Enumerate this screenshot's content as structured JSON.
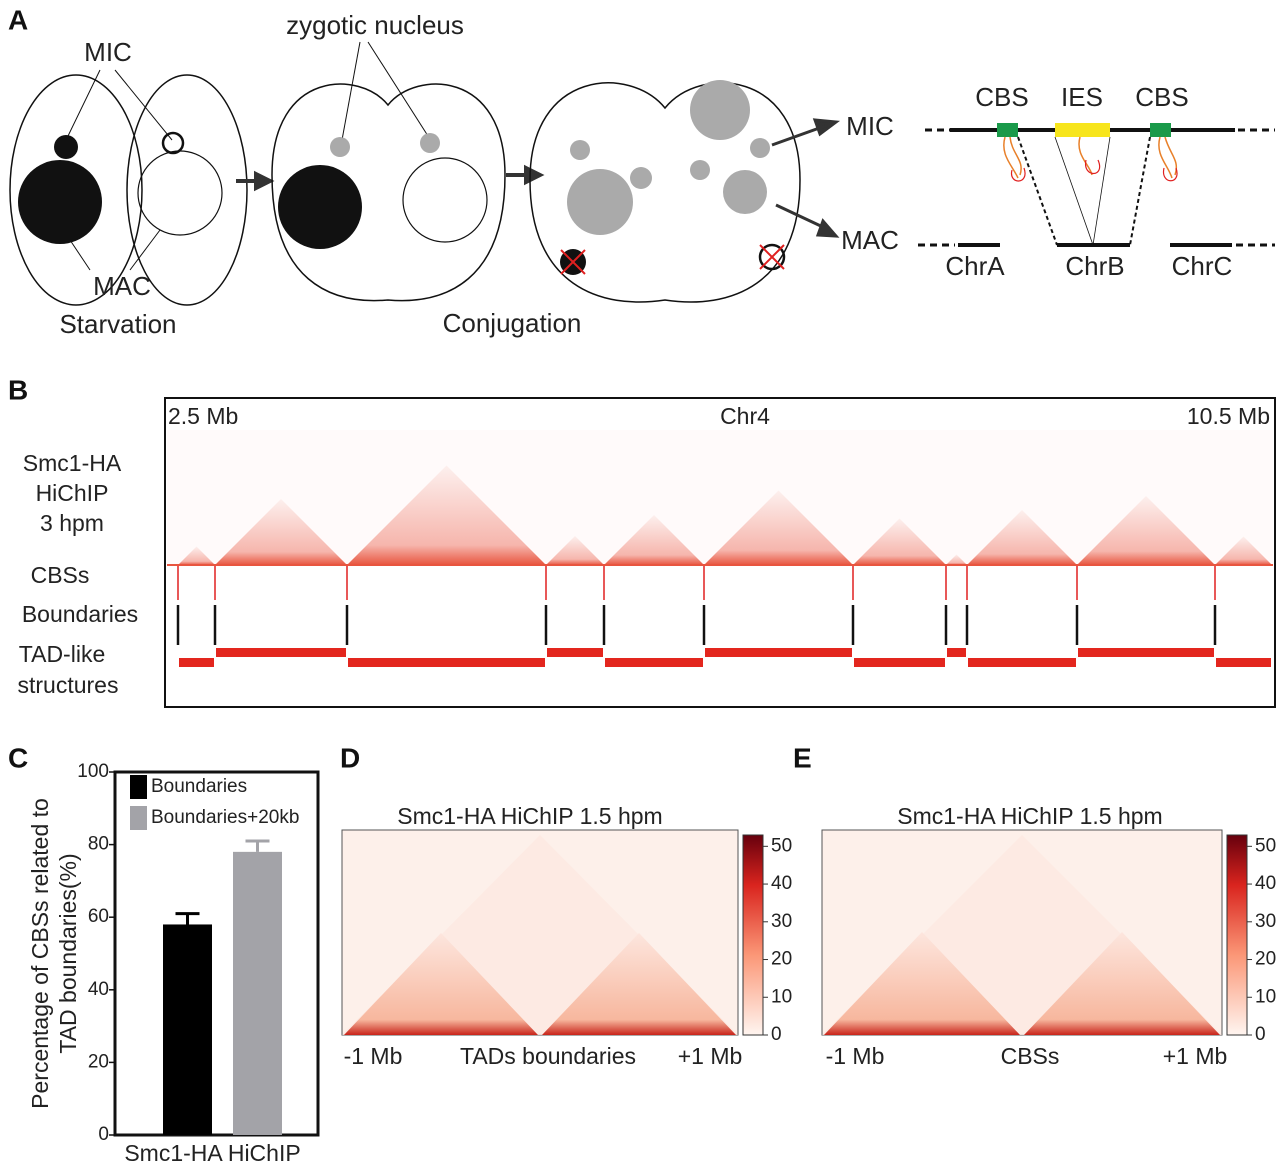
{
  "panels": {
    "A": {
      "label": "A",
      "mic": "MIC",
      "mac": "MAC",
      "zygotic": "zygotic nucleus",
      "starvation": "Starvation",
      "conjugation": "Conjugation",
      "mic_right": "MIC",
      "mac_right": "MAC",
      "cbs_left": "CBS",
      "ies": "IES",
      "cbs_right": "CBS",
      "chrA": "ChrA",
      "chrB": "ChrB",
      "chrC": "ChrC"
    },
    "B": {
      "label": "B",
      "start": "2.5 Mb",
      "chrom": "Chr4",
      "end": "10.5 Mb",
      "track1": [
        "Smc1-HA",
        "HiChIP",
        "3 hpm"
      ],
      "track2": "CBSs",
      "track3": "Boundaries",
      "track4": [
        "TAD-like",
        "structures"
      ]
    },
    "C": {
      "label": "C"
    },
    "D": {
      "label": "D",
      "title": "Smc1-HA HiChIP 1.5 hpm",
      "left": "-1 Mb",
      "center": "TADs boundaries",
      "right": "+1 Mb",
      "colorbar": {
        "lim": [
          0,
          53
        ],
        "ticks": [
          0,
          10,
          20,
          30,
          40,
          50
        ]
      }
    },
    "E": {
      "label": "E",
      "title": "Smc1-HA HiChIP 1.5 hpm",
      "left": "-1 Mb",
      "center": "CBSs",
      "right": "+1 Mb",
      "colorbar": {
        "lim": [
          0,
          53
        ],
        "ticks": [
          0,
          10,
          20,
          30,
          40,
          50
        ]
      }
    }
  },
  "chart_data": {
    "type": "bar",
    "categories": [
      "Smc1-HA HiChIP"
    ],
    "ylabel": [
      "Percentage of CBSs related to",
      "TAD boundaries(%)"
    ],
    "series": [
      {
        "name": "Boundaries",
        "color": "#000000",
        "values": [
          58
        ],
        "errors": [
          3
        ]
      },
      {
        "name": "Boundaries+20kb",
        "color": "#a3a3a8",
        "values": [
          78
        ],
        "errors": [
          3
        ]
      }
    ],
    "ylim": [
      0,
      100
    ],
    "yticks": [
      0,
      20,
      40,
      60,
      80,
      100
    ],
    "grid": false
  }
}
